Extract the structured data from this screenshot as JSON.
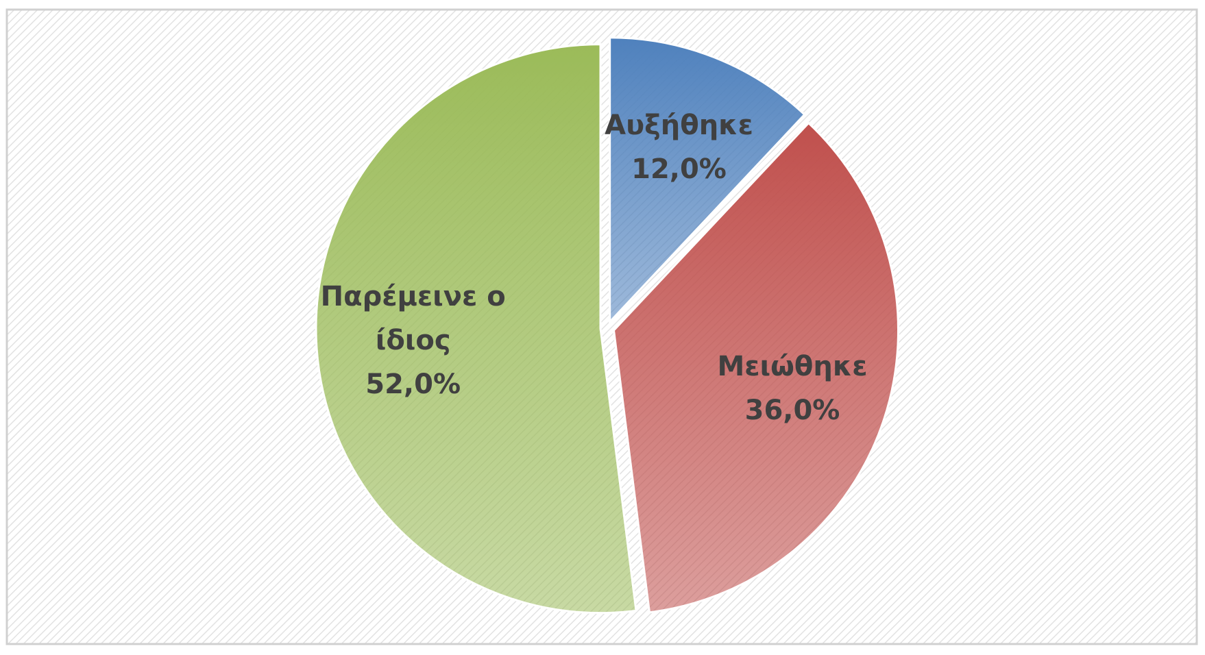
{
  "chart_data": {
    "type": "pie",
    "categories": [
      "Αυξήθηκε",
      "Μειώθηκε",
      "Παρέμεινε ο ίδιος"
    ],
    "values": [
      12,
      36,
      52
    ],
    "value_labels": [
      "12,0%",
      "36,0%",
      "52,0%"
    ],
    "colors": [
      "#4f81bd",
      "#c0504d",
      "#9bbb59"
    ]
  }
}
